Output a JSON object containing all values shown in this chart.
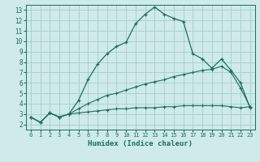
{
  "xlabel": "Humidex (Indice chaleur)",
  "bg_color": "#ceeaea",
  "grid_color": "#a8cccc",
  "line_color": "#1a6e60",
  "xlim": [
    -0.5,
    23.5
  ],
  "ylim": [
    1.5,
    13.5
  ],
  "xticks": [
    0,
    1,
    2,
    3,
    4,
    5,
    6,
    7,
    8,
    9,
    10,
    11,
    12,
    13,
    14,
    15,
    16,
    17,
    18,
    19,
    20,
    21,
    22,
    23
  ],
  "yticks": [
    2,
    3,
    4,
    5,
    6,
    7,
    8,
    9,
    10,
    11,
    12,
    13
  ],
  "line1_x": [
    0,
    1,
    2,
    3,
    4,
    5,
    6,
    7,
    8,
    9,
    10,
    11,
    12,
    13,
    14,
    15,
    16,
    17,
    18,
    19,
    20,
    21,
    22,
    23
  ],
  "line1_y": [
    2.7,
    2.2,
    3.1,
    2.7,
    3.0,
    4.3,
    6.3,
    7.8,
    8.8,
    9.5,
    9.9,
    11.7,
    12.6,
    13.3,
    12.6,
    12.2,
    11.9,
    8.8,
    8.3,
    7.4,
    8.3,
    7.2,
    6.0,
    3.6
  ],
  "line2_x": [
    0,
    1,
    2,
    3,
    4,
    5,
    6,
    7,
    8,
    9,
    10,
    11,
    12,
    13,
    14,
    15,
    16,
    17,
    18,
    19,
    20,
    21,
    22,
    23
  ],
  "line2_y": [
    2.7,
    2.2,
    3.1,
    2.7,
    3.0,
    3.5,
    4.0,
    4.4,
    4.8,
    5.0,
    5.3,
    5.6,
    5.9,
    6.1,
    6.3,
    6.6,
    6.8,
    7.0,
    7.2,
    7.3,
    7.6,
    7.0,
    5.5,
    3.7
  ],
  "line3_x": [
    0,
    1,
    2,
    3,
    4,
    5,
    6,
    7,
    8,
    9,
    10,
    11,
    12,
    13,
    14,
    15,
    16,
    17,
    18,
    19,
    20,
    21,
    22,
    23
  ],
  "line3_y": [
    2.7,
    2.2,
    3.1,
    2.7,
    3.0,
    3.1,
    3.2,
    3.3,
    3.4,
    3.5,
    3.5,
    3.6,
    3.6,
    3.6,
    3.7,
    3.7,
    3.8,
    3.8,
    3.8,
    3.8,
    3.8,
    3.7,
    3.6,
    3.7
  ]
}
